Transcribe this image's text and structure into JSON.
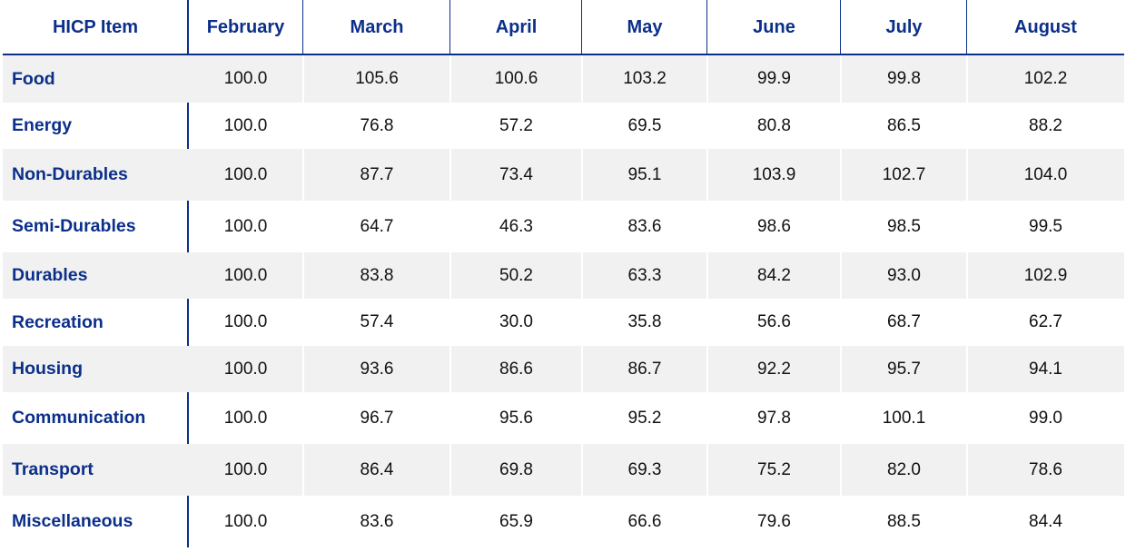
{
  "chart_data": {
    "type": "table",
    "columns": [
      "HICP Item",
      "February",
      "March",
      "April",
      "May",
      "June",
      "July",
      "August"
    ],
    "rows": [
      {
        "label": "Food",
        "values": [
          "100.0",
          "105.6",
          "100.6",
          "103.2",
          "99.9",
          "99.8",
          "102.2"
        ]
      },
      {
        "label": "Energy",
        "values": [
          "100.0",
          "76.8",
          "57.2",
          "69.5",
          "80.8",
          "86.5",
          "88.2"
        ]
      },
      {
        "label": "Non-Durables",
        "values": [
          "100.0",
          "87.7",
          "73.4",
          "95.1",
          "103.9",
          "102.7",
          "104.0"
        ]
      },
      {
        "label": "Semi-Durables",
        "values": [
          "100.0",
          "64.7",
          "46.3",
          "83.6",
          "98.6",
          "98.5",
          "99.5"
        ]
      },
      {
        "label": "Durables",
        "values": [
          "100.0",
          "83.8",
          "50.2",
          "63.3",
          "84.2",
          "93.0",
          "102.9"
        ]
      },
      {
        "label": "Recreation",
        "values": [
          "100.0",
          "57.4",
          "30.0",
          "35.8",
          "56.6",
          "68.7",
          "62.7"
        ]
      },
      {
        "label": "Housing",
        "values": [
          "100.0",
          "93.6",
          "86.6",
          "86.7",
          "92.2",
          "95.7",
          "94.1"
        ]
      },
      {
        "label": "Communication",
        "values": [
          "100.0",
          "96.7",
          "95.6",
          "95.2",
          "97.8",
          "100.1",
          "99.0"
        ]
      },
      {
        "label": "Transport",
        "values": [
          "100.0",
          "86.4",
          "69.8",
          "69.3",
          "75.2",
          "82.0",
          "78.6"
        ]
      },
      {
        "label": "Miscellaneous",
        "values": [
          "100.0",
          "83.6",
          "65.9",
          "66.6",
          "79.6",
          "88.5",
          "84.4"
        ]
      }
    ]
  },
  "colors": {
    "header_text": "#0b2f8a",
    "rule": "#0b2f8a",
    "shade": "#f1f1f1",
    "cell_text": "#111111"
  }
}
